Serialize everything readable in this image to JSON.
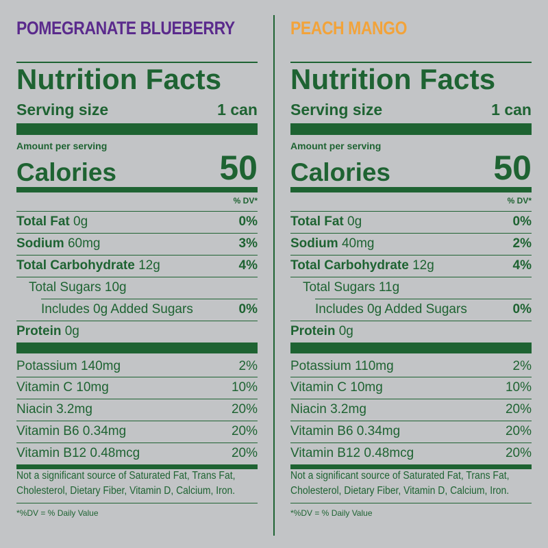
{
  "panels": [
    {
      "flavor": "POMEGRANATE BLUEBERRY",
      "flavor_color": "#5a2a8c",
      "title": "Nutrition Facts",
      "serving_label": "Serving size",
      "serving_value": "1 can",
      "amount_label": "Amount per serving",
      "calories_label": "Calories",
      "calories_value": "50",
      "dv_header": "% DV*",
      "nutrients": [
        {
          "name": "Total Fat",
          "amount": "0g",
          "pct": "0%"
        },
        {
          "name": "Sodium",
          "amount": "60mg",
          "pct": "3%"
        },
        {
          "name": "Total Carbohydrate",
          "amount": "12g",
          "pct": "4%"
        },
        {
          "name": "Total Sugars 10g",
          "amount": "",
          "pct": ""
        },
        {
          "name": "Includes 0g Added Sugars",
          "amount": "",
          "pct": "0%"
        },
        {
          "name": "Protein",
          "amount": "0g",
          "pct": ""
        }
      ],
      "vitamins": [
        {
          "name": "Potassium 140mg",
          "pct": "2%"
        },
        {
          "name": "Vitamin C 10mg",
          "pct": "10%"
        },
        {
          "name": "Niacin 3.2mg",
          "pct": "20%"
        },
        {
          "name": "Vitamin B6 0.34mg",
          "pct": "20%"
        },
        {
          "name": "Vitamin B12 0.48mcg",
          "pct": "20%"
        }
      ],
      "footnote": "Not a significant source of Saturated Fat, Trans Fat, Cholesterol, Dietary Fiber, Vitamin D, Calcium, Iron.",
      "dv_note": "*%DV = % Daily Value"
    },
    {
      "flavor": "PEACH MANGO",
      "flavor_color": "#f2a33a",
      "title": "Nutrition Facts",
      "serving_label": "Serving size",
      "serving_value": "1 can",
      "amount_label": "Amount per serving",
      "calories_label": "Calories",
      "calories_value": "50",
      "dv_header": "% DV*",
      "nutrients": [
        {
          "name": "Total Fat",
          "amount": "0g",
          "pct": "0%"
        },
        {
          "name": "Sodium",
          "amount": "40mg",
          "pct": "2%"
        },
        {
          "name": "Total Carbohydrate",
          "amount": "12g",
          "pct": "4%"
        },
        {
          "name": "Total Sugars 11g",
          "amount": "",
          "pct": ""
        },
        {
          "name": "Includes 0g Added Sugars",
          "amount": "",
          "pct": "0%"
        },
        {
          "name": "Protein",
          "amount": "0g",
          "pct": ""
        }
      ],
      "vitamins": [
        {
          "name": "Potassium 110mg",
          "pct": "2%"
        },
        {
          "name": "Vitamin C 10mg",
          "pct": "10%"
        },
        {
          "name": "Niacin 3.2mg",
          "pct": "20%"
        },
        {
          "name": "Vitamin B6 0.34mg",
          "pct": "20%"
        },
        {
          "name": "Vitamin B12 0.48mcg",
          "pct": "20%"
        }
      ],
      "footnote": "Not a significant source of Saturated Fat, Trans Fat, Cholesterol, Dietary Fiber, Vitamin D, Calcium, Iron.",
      "dv_note": "*%DV = % Daily Value"
    }
  ]
}
